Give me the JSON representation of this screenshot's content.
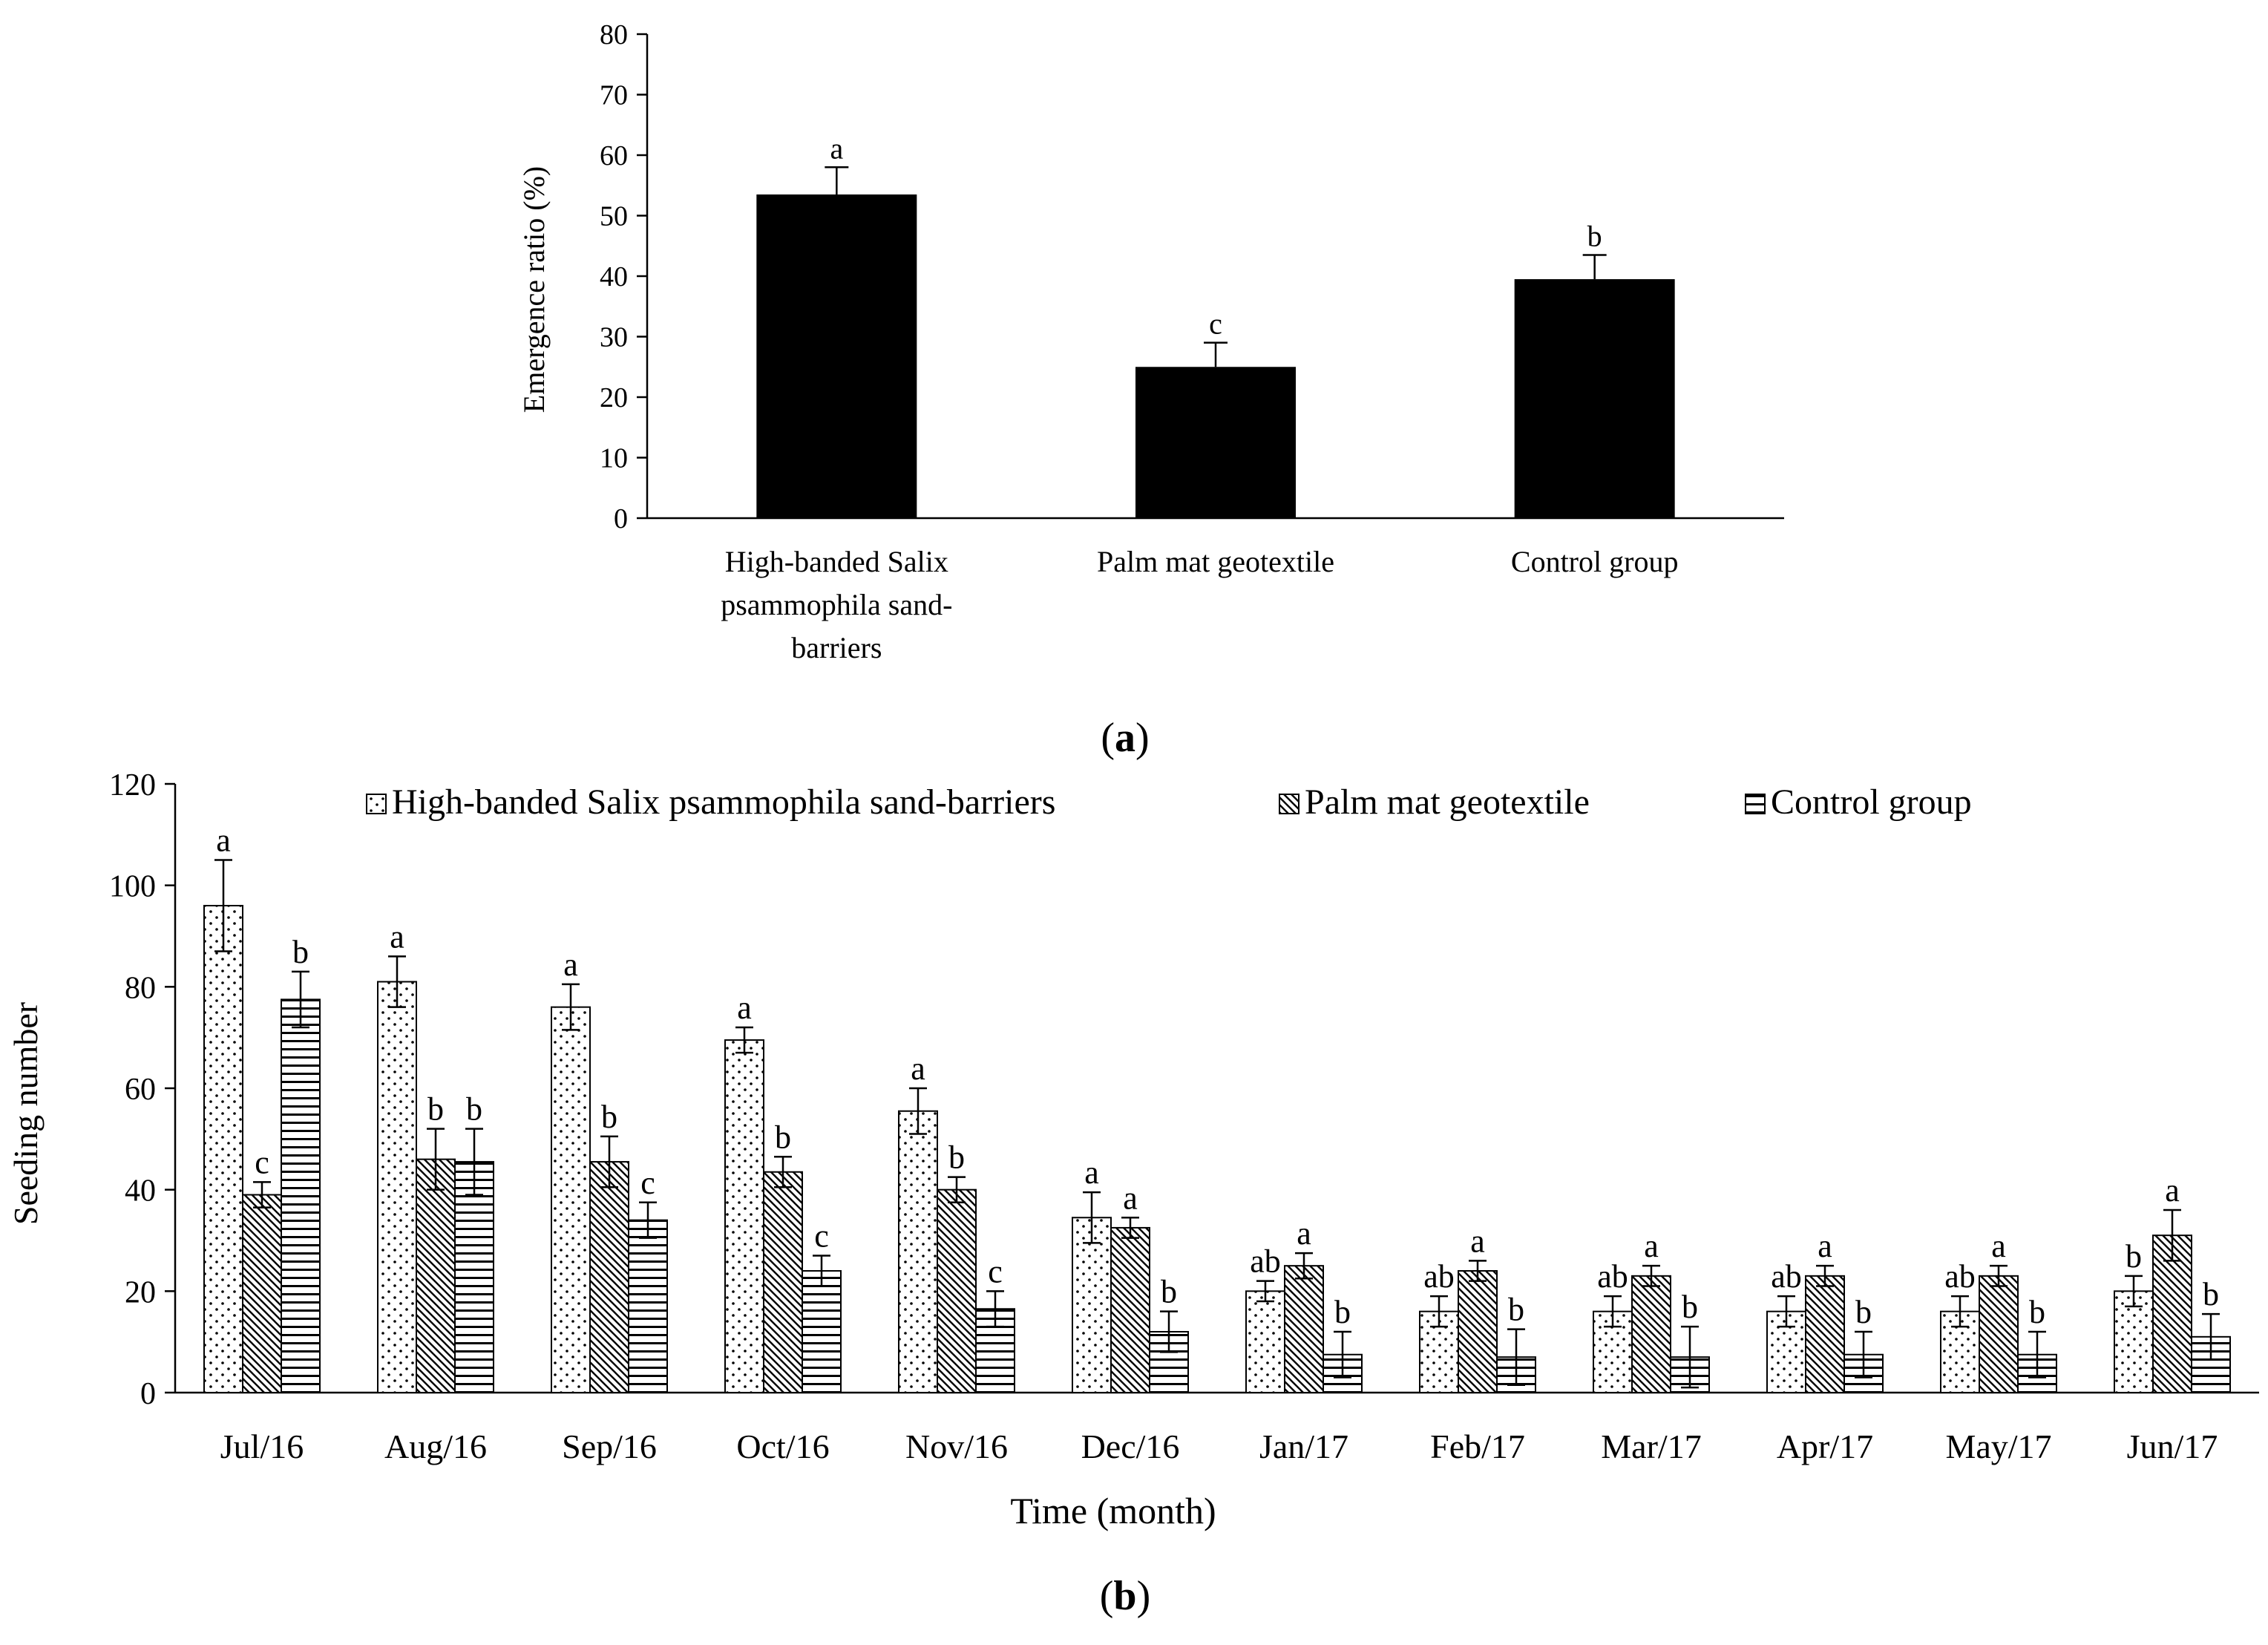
{
  "chart_data": [
    {
      "id": "a",
      "type": "bar",
      "panel_label": "a",
      "ylabel": "Emergence ratio (%)",
      "ylim": [
        0,
        80
      ],
      "yticks": [
        0,
        10,
        20,
        30,
        40,
        50,
        60,
        70,
        80
      ],
      "categories": [
        "High-banded Salix psammophila sand-barriers",
        "Palm mat geotextile",
        "Control group"
      ],
      "category_label_lines": [
        [
          "High-banded Salix",
          "psammophila sand-",
          "barriers"
        ],
        [
          "Palm mat geotextile"
        ],
        [
          "Control group"
        ]
      ],
      "values": [
        53.5,
        25,
        39.5
      ],
      "errors": [
        4.5,
        4,
        4
      ],
      "significance": [
        "a",
        "c",
        "b"
      ],
      "colors": {
        "bar": "#000000"
      }
    },
    {
      "id": "b",
      "type": "bar",
      "panel_label": "b",
      "xlabel": "Time (month)",
      "ylabel": "Seeding number",
      "ylim": [
        0,
        120
      ],
      "yticks": [
        0,
        20,
        40,
        60,
        80,
        100,
        120
      ],
      "legend_position": "top",
      "categories": [
        "Jul/16",
        "Aug/16",
        "Sep/16",
        "Oct/16",
        "Nov/16",
        "Dec/16",
        "Jan/17",
        "Feb/17",
        "Mar/17",
        "Apr/17",
        "May/17",
        "Jun/17"
      ],
      "series": [
        {
          "name": "High-banded Salix psammophila sand-barriers",
          "pattern": "dots",
          "values": [
            96,
            81,
            76,
            69.5,
            55.5,
            34.5,
            20,
            16,
            16,
            16,
            16,
            20
          ],
          "errors": [
            9,
            5,
            4.5,
            2.5,
            4.5,
            5,
            2,
            3,
            3,
            3,
            3,
            3
          ],
          "significance": [
            "a",
            "a",
            "a",
            "a",
            "a",
            "a",
            "ab",
            "ab",
            "ab",
            "ab",
            "ab",
            "b"
          ]
        },
        {
          "name": "Palm mat geotextile",
          "pattern": "diagonal",
          "values": [
            39,
            46,
            45.5,
            43.5,
            40,
            32.5,
            25,
            24,
            23,
            23,
            23,
            31
          ],
          "errors": [
            2.5,
            6,
            5,
            3,
            2.5,
            2,
            2.5,
            2,
            2,
            2,
            2,
            5
          ],
          "significance": [
            "c",
            "b",
            "b",
            "b",
            "b",
            "a",
            "a",
            "a",
            "a",
            "a",
            "a",
            "a"
          ]
        },
        {
          "name": "Control group",
          "pattern": "horizontal",
          "values": [
            77.5,
            45.5,
            34,
            24,
            16.5,
            12,
            7.5,
            7,
            7,
            7.5,
            7.5,
            11
          ],
          "errors": [
            5.5,
            6.5,
            3.5,
            3,
            3.5,
            4,
            4.5,
            5.5,
            6,
            4.5,
            4.5,
            4.5
          ],
          "significance": [
            "b",
            "b",
            "c",
            "c",
            "c",
            "b",
            "b",
            "b",
            "b",
            "b",
            "b",
            "b"
          ]
        }
      ]
    }
  ]
}
